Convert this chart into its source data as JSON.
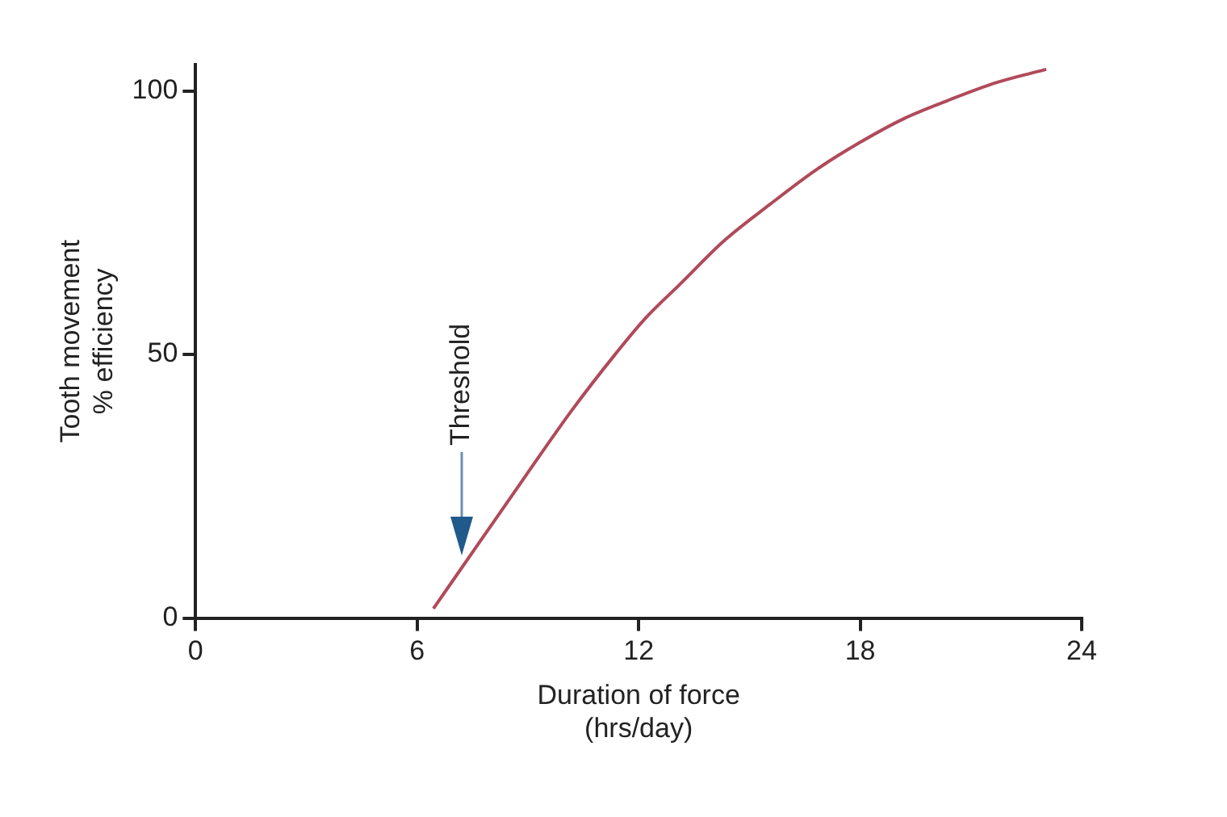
{
  "chart_data": {
    "type": "line",
    "xlabel": "Duration of force\n(hrs/day)",
    "ylabel": "Tooth movement\n% efficiency",
    "x": [
      6.44,
      7.7,
      8.94,
      10.2,
      11.36,
      12.2,
      13.13,
      14.3,
      15.54,
      16.8,
      17.96,
      19.2,
      20.38,
      21.7,
      23.04
    ],
    "series": [
      {
        "color": "#b04a5a",
        "values": [
          1.8,
          14.5,
          27,
          39.5,
          50,
          57,
          63.4,
          71.5,
          78.4,
          85,
          90.1,
          94.8,
          98.2,
          101.6,
          104.1
        ]
      }
    ],
    "xlim": [
      0,
      24
    ],
    "xticks": [
      0,
      6,
      12,
      18,
      24
    ],
    "ylim": [
      0,
      105
    ],
    "yticks": [
      0,
      50,
      100
    ],
    "grid": false,
    "legend": false,
    "marker": "none",
    "line_style": "solid",
    "annotations": [
      "Threshold"
    ]
  }
}
